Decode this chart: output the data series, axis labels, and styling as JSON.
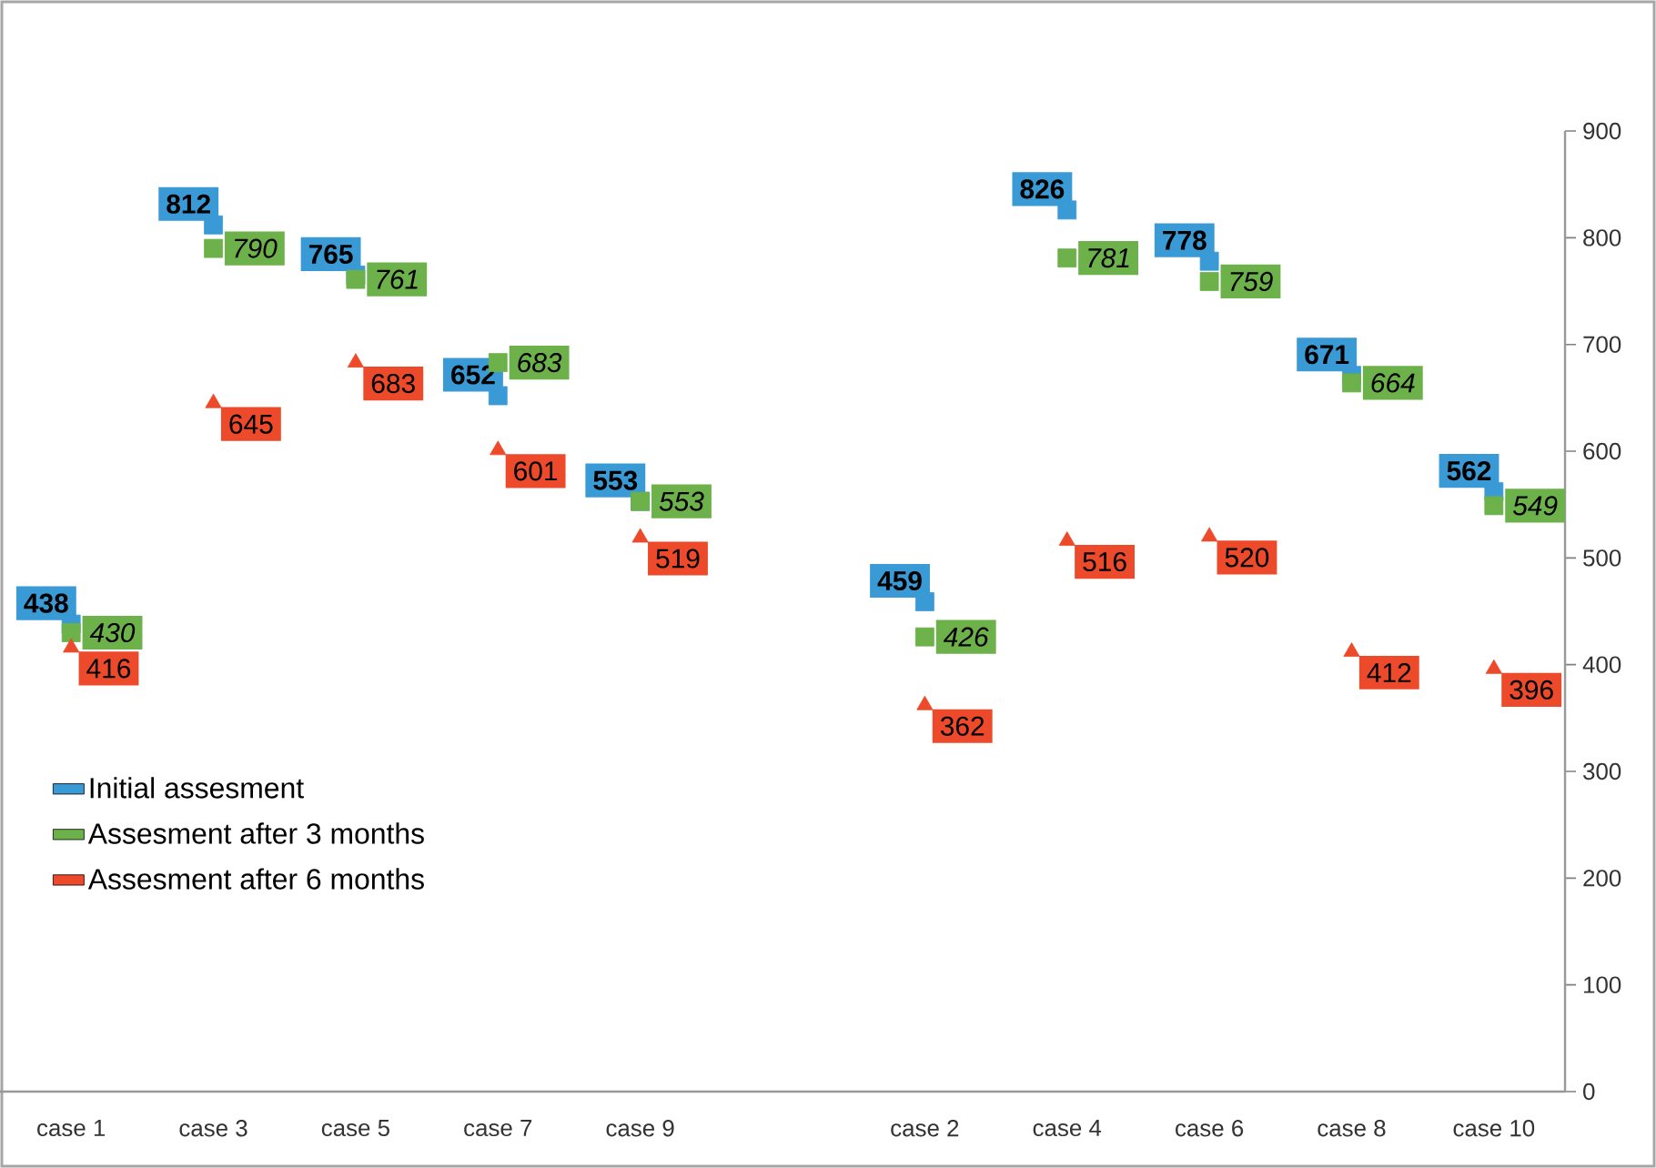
{
  "chart_data": {
    "type": "scatter",
    "categories": [
      "case 1",
      "case 3",
      "case 5",
      "case 7",
      "case 9",
      null,
      "case 2",
      "case 4",
      "case 6",
      "case 8",
      "case 10"
    ],
    "series": [
      {
        "name": "Initial assesment",
        "color": "#3a9ad6",
        "marker": "square",
        "values": [
          438,
          812,
          765,
          652,
          553,
          null,
          459,
          826,
          778,
          671,
          562
        ]
      },
      {
        "name": "Assesment after 3 months",
        "color": "#6cb14a",
        "marker": "square",
        "values": [
          430,
          790,
          761,
          683,
          553,
          null,
          426,
          781,
          759,
          664,
          549
        ]
      },
      {
        "name": "Assesment after 6 months",
        "color": "#ec4a2a",
        "marker": "triangle",
        "values": [
          416,
          645,
          683,
          601,
          519,
          null,
          362,
          516,
          520,
          412,
          396
        ]
      }
    ],
    "ylim": [
      0,
      900
    ],
    "yticks": [
      0,
      100,
      200,
      300,
      400,
      500,
      600,
      700,
      800,
      900
    ],
    "data_labels": true,
    "legend": "bottom left",
    "grid": false
  }
}
